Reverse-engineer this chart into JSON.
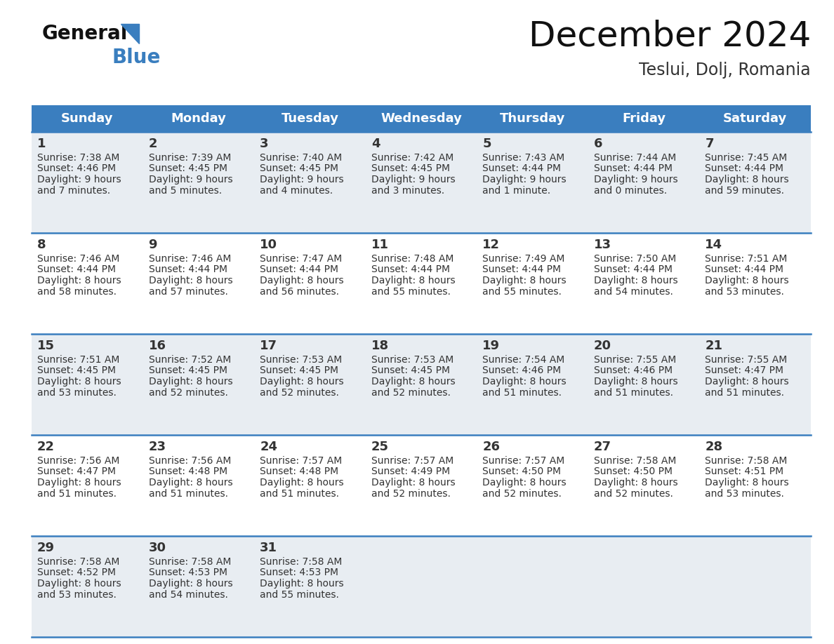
{
  "title": "December 2024",
  "subtitle": "Teslui, Dolj, Romania",
  "header_color": "#3a7ebf",
  "header_text_color": "#ffffff",
  "row_bg_odd": "#e8edf2",
  "row_bg_even": "#ffffff",
  "border_color": "#3a7ebf",
  "days_of_week": [
    "Sunday",
    "Monday",
    "Tuesday",
    "Wednesday",
    "Thursday",
    "Friday",
    "Saturday"
  ],
  "calendar_data": [
    [
      {
        "day": 1,
        "sunrise": "7:38 AM",
        "sunset": "4:46 PM",
        "daylight_hours": 9,
        "daylight_minutes": 7
      },
      {
        "day": 2,
        "sunrise": "7:39 AM",
        "sunset": "4:45 PM",
        "daylight_hours": 9,
        "daylight_minutes": 5
      },
      {
        "day": 3,
        "sunrise": "7:40 AM",
        "sunset": "4:45 PM",
        "daylight_hours": 9,
        "daylight_minutes": 4
      },
      {
        "day": 4,
        "sunrise": "7:42 AM",
        "sunset": "4:45 PM",
        "daylight_hours": 9,
        "daylight_minutes": 3
      },
      {
        "day": 5,
        "sunrise": "7:43 AM",
        "sunset": "4:44 PM",
        "daylight_hours": 9,
        "daylight_minutes": 1
      },
      {
        "day": 6,
        "sunrise": "7:44 AM",
        "sunset": "4:44 PM",
        "daylight_hours": 9,
        "daylight_minutes": 0
      },
      {
        "day": 7,
        "sunrise": "7:45 AM",
        "sunset": "4:44 PM",
        "daylight_hours": 8,
        "daylight_minutes": 59
      }
    ],
    [
      {
        "day": 8,
        "sunrise": "7:46 AM",
        "sunset": "4:44 PM",
        "daylight_hours": 8,
        "daylight_minutes": 58
      },
      {
        "day": 9,
        "sunrise": "7:46 AM",
        "sunset": "4:44 PM",
        "daylight_hours": 8,
        "daylight_minutes": 57
      },
      {
        "day": 10,
        "sunrise": "7:47 AM",
        "sunset": "4:44 PM",
        "daylight_hours": 8,
        "daylight_minutes": 56
      },
      {
        "day": 11,
        "sunrise": "7:48 AM",
        "sunset": "4:44 PM",
        "daylight_hours": 8,
        "daylight_minutes": 55
      },
      {
        "day": 12,
        "sunrise": "7:49 AM",
        "sunset": "4:44 PM",
        "daylight_hours": 8,
        "daylight_minutes": 55
      },
      {
        "day": 13,
        "sunrise": "7:50 AM",
        "sunset": "4:44 PM",
        "daylight_hours": 8,
        "daylight_minutes": 54
      },
      {
        "day": 14,
        "sunrise": "7:51 AM",
        "sunset": "4:44 PM",
        "daylight_hours": 8,
        "daylight_minutes": 53
      }
    ],
    [
      {
        "day": 15,
        "sunrise": "7:51 AM",
        "sunset": "4:45 PM",
        "daylight_hours": 8,
        "daylight_minutes": 53
      },
      {
        "day": 16,
        "sunrise": "7:52 AM",
        "sunset": "4:45 PM",
        "daylight_hours": 8,
        "daylight_minutes": 52
      },
      {
        "day": 17,
        "sunrise": "7:53 AM",
        "sunset": "4:45 PM",
        "daylight_hours": 8,
        "daylight_minutes": 52
      },
      {
        "day": 18,
        "sunrise": "7:53 AM",
        "sunset": "4:45 PM",
        "daylight_hours": 8,
        "daylight_minutes": 52
      },
      {
        "day": 19,
        "sunrise": "7:54 AM",
        "sunset": "4:46 PM",
        "daylight_hours": 8,
        "daylight_minutes": 51
      },
      {
        "day": 20,
        "sunrise": "7:55 AM",
        "sunset": "4:46 PM",
        "daylight_hours": 8,
        "daylight_minutes": 51
      },
      {
        "day": 21,
        "sunrise": "7:55 AM",
        "sunset": "4:47 PM",
        "daylight_hours": 8,
        "daylight_minutes": 51
      }
    ],
    [
      {
        "day": 22,
        "sunrise": "7:56 AM",
        "sunset": "4:47 PM",
        "daylight_hours": 8,
        "daylight_minutes": 51
      },
      {
        "day": 23,
        "sunrise": "7:56 AM",
        "sunset": "4:48 PM",
        "daylight_hours": 8,
        "daylight_minutes": 51
      },
      {
        "day": 24,
        "sunrise": "7:57 AM",
        "sunset": "4:48 PM",
        "daylight_hours": 8,
        "daylight_minutes": 51
      },
      {
        "day": 25,
        "sunrise": "7:57 AM",
        "sunset": "4:49 PM",
        "daylight_hours": 8,
        "daylight_minutes": 52
      },
      {
        "day": 26,
        "sunrise": "7:57 AM",
        "sunset": "4:50 PM",
        "daylight_hours": 8,
        "daylight_minutes": 52
      },
      {
        "day": 27,
        "sunrise": "7:58 AM",
        "sunset": "4:50 PM",
        "daylight_hours": 8,
        "daylight_minutes": 52
      },
      {
        "day": 28,
        "sunrise": "7:58 AM",
        "sunset": "4:51 PM",
        "daylight_hours": 8,
        "daylight_minutes": 53
      }
    ],
    [
      {
        "day": 29,
        "sunrise": "7:58 AM",
        "sunset": "4:52 PM",
        "daylight_hours": 8,
        "daylight_minutes": 53
      },
      {
        "day": 30,
        "sunrise": "7:58 AM",
        "sunset": "4:53 PM",
        "daylight_hours": 8,
        "daylight_minutes": 54
      },
      {
        "day": 31,
        "sunrise": "7:58 AM",
        "sunset": "4:53 PM",
        "daylight_hours": 8,
        "daylight_minutes": 55
      },
      null,
      null,
      null,
      null
    ]
  ],
  "logo_text_general": "General",
  "logo_text_blue": "Blue",
  "logo_triangle_color": "#3a7ebf",
  "text_color": "#333333",
  "title_fontsize": 36,
  "subtitle_fontsize": 17,
  "header_fontsize": 13,
  "day_num_fontsize": 13,
  "cell_text_fontsize": 10
}
